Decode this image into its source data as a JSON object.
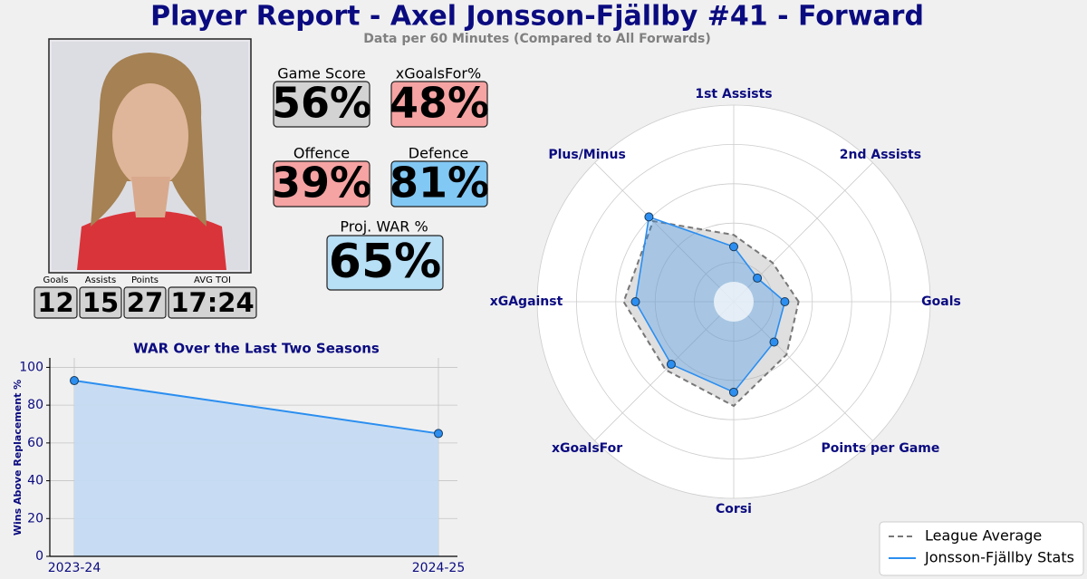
{
  "header": {
    "title": "Player Report - Axel Jonsson-Fjällby #41 - Forward",
    "subtitle": "Data per 60 Minutes (Compared to All Forwards)"
  },
  "ratings": [
    {
      "label": "Game Score",
      "value": "56%",
      "color": "#d3d3d3"
    },
    {
      "label": "xGoalsFor%",
      "value": "48%",
      "color": "#f6a3a3"
    },
    {
      "label": "Offence",
      "value": "39%",
      "color": "#f6a3a3"
    },
    {
      "label": "Defence",
      "value": "81%",
      "color": "#82c8f4"
    },
    {
      "label": "Proj. WAR %",
      "value": "65%",
      "color": "#b7dff5"
    }
  ],
  "totals": [
    {
      "label": "Goals",
      "value": "12"
    },
    {
      "label": "Assists",
      "value": "15"
    },
    {
      "label": "Points",
      "value": "27"
    },
    {
      "label": "AVG TOI",
      "value": "17:24"
    }
  ],
  "chart_data": [
    {
      "type": "line",
      "title": "WAR Over the Last Two Seasons",
      "y_label": "Wins Above Replacement %",
      "categories": [
        "2023-24",
        "2024-25"
      ],
      "values": [
        93,
        65
      ],
      "color": "#2b8ef0",
      "fill": "#c4daf1",
      "ylim": [
        0,
        105
      ],
      "yticks": [
        0,
        20,
        40,
        60,
        80,
        100
      ],
      "grid": true
    },
    {
      "type": "radar",
      "categories": [
        "Goals",
        "2nd Assists",
        "1st Assists",
        "Plus/Minus",
        "xGAgainst",
        "xGoalsFor",
        "Corsi",
        "Points per Game"
      ],
      "series": [
        {
          "name": "League Average",
          "color": "#777777",
          "values": [
            0.33,
            0.28,
            0.34,
            0.58,
            0.56,
            0.49,
            0.53,
            0.38
          ]
        },
        {
          "name": "Jonsson-Fjällby Stats",
          "color": "#2b8ef0",
          "values": [
            0.26,
            0.17,
            0.28,
            0.61,
            0.5,
            0.45,
            0.46,
            0.29
          ]
        }
      ],
      "ylim": [
        0,
        1
      ],
      "yticks": [
        0.2,
        0.4,
        0.6,
        0.8,
        1.0
      ],
      "grid": true,
      "legend": "lower right"
    }
  ]
}
